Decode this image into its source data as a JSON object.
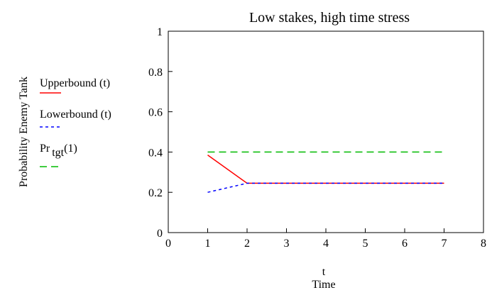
{
  "chart_data": {
    "type": "line",
    "title": "Low stakes, high time stress",
    "ylabel": "Probability Enemy Tank",
    "xlabel_var": "t",
    "xlabel": "Time",
    "xlim": [
      0,
      8
    ],
    "ylim": [
      0,
      1
    ],
    "xticks": [
      0,
      1,
      2,
      3,
      4,
      5,
      6,
      7,
      8
    ],
    "yticks": [
      0,
      0.2,
      0.4,
      0.6,
      0.8,
      1
    ],
    "ytick_labels": [
      "0",
      "0.2",
      "0.4",
      "0.6",
      "0.8",
      "1"
    ],
    "grid": false,
    "legend_position": "left",
    "series": [
      {
        "name": "Upperbound (t)",
        "color": "#ff0000",
        "dash": "solid",
        "x": [
          1,
          2,
          3,
          4,
          5,
          6,
          7
        ],
        "y": [
          0.385,
          0.245,
          0.245,
          0.245,
          0.245,
          0.245,
          0.245
        ]
      },
      {
        "name": "Lowerbound (t)",
        "color": "#0000ff",
        "dash": "dotted",
        "x": [
          1,
          2,
          3,
          4,
          5,
          6,
          7
        ],
        "y": [
          0.2,
          0.245,
          0.245,
          0.245,
          0.245,
          0.245,
          0.245
        ]
      },
      {
        "name": "Pr",
        "name_sub": "tgt",
        "name_suffix": "(1)",
        "color": "#00bb00",
        "dash": "dashed",
        "x": [
          1,
          2,
          3,
          4,
          5,
          6,
          7
        ],
        "y": [
          0.4,
          0.4,
          0.4,
          0.4,
          0.4,
          0.4,
          0.4
        ]
      }
    ]
  }
}
